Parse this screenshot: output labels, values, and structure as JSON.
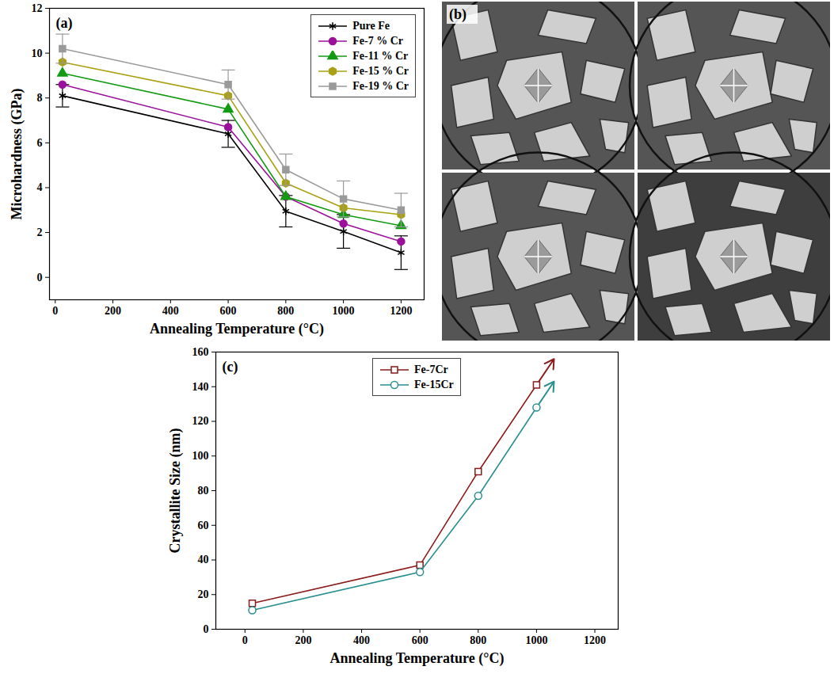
{
  "chart_data": [
    {
      "type": "line",
      "title": "(a)",
      "x_label": "Annealing Temperature (°C)",
      "y_label": "Microhardness (GPa)",
      "x": [
        25,
        600,
        800,
        1000,
        1200
      ],
      "xlim": [
        -20,
        1280
      ],
      "xticks": [
        0,
        200,
        400,
        600,
        800,
        1000,
        1200
      ],
      "ylim": [
        -1,
        12
      ],
      "yticks": [
        0,
        2,
        4,
        6,
        8,
        10,
        12
      ],
      "legend": "top-right",
      "series": [
        {
          "name": "Pure Fe",
          "color": "#000000",
          "marker": "asterisk",
          "line_style": "solid",
          "values": [
            8.1,
            6.4,
            2.95,
            2.05,
            1.1
          ],
          "errors": [
            0.5,
            0.6,
            0.7,
            0.75,
            0.75
          ]
        },
        {
          "name": "Fe-7 % Cr",
          "color": "#9b119b",
          "marker": "circle",
          "line_style": "solid",
          "values": [
            8.6,
            6.7,
            3.6,
            2.4,
            1.6
          ]
        },
        {
          "name": "Fe-11 % Cr",
          "color": "#139a13",
          "marker": "triangle",
          "line_style": "solid",
          "values": [
            9.1,
            7.5,
            3.6,
            2.8,
            2.3
          ]
        },
        {
          "name": "Fe-15 % Cr",
          "color": "#a9a012",
          "marker": "hexagon",
          "line_style": "solid",
          "values": [
            9.6,
            8.1,
            4.2,
            3.1,
            2.8
          ]
        },
        {
          "name": "Fe-19 % Cr",
          "color": "#9a9a9a",
          "marker": "square",
          "line_style": "solid",
          "values": [
            10.2,
            8.6,
            4.8,
            3.5,
            3.0
          ],
          "errors": [
            0.65,
            0.65,
            0.7,
            0.8,
            0.75
          ]
        }
      ]
    },
    {
      "type": "image",
      "title": "(b)"
    },
    {
      "type": "line",
      "title": "(c)",
      "x_label": "Annealing Temperature (°C)",
      "y_label": "Crystallite Size (nm)",
      "x": [
        25,
        600,
        800,
        1000
      ],
      "xlim": [
        -100,
        1280
      ],
      "xticks": [
        0,
        200,
        400,
        600,
        800,
        1000,
        1200
      ],
      "ylim": [
        0,
        160
      ],
      "yticks": [
        0,
        20,
        40,
        60,
        80,
        100,
        120,
        140,
        160
      ],
      "legend": "top",
      "series": [
        {
          "name": "Fe-7Cr",
          "color": "#8b1a1a",
          "marker": "square_open",
          "line_style": "solid",
          "values": [
            15,
            37,
            91,
            141
          ],
          "arrow_end": {
            "x": 1060,
            "y": 156
          }
        },
        {
          "name": "Fe-15Cr",
          "color": "#2a8f8f",
          "marker": "circle_open",
          "line_style": "solid",
          "values": [
            11,
            33,
            77,
            128
          ],
          "arrow_end": {
            "x": 1060,
            "y": 143
          }
        }
      ]
    }
  ]
}
